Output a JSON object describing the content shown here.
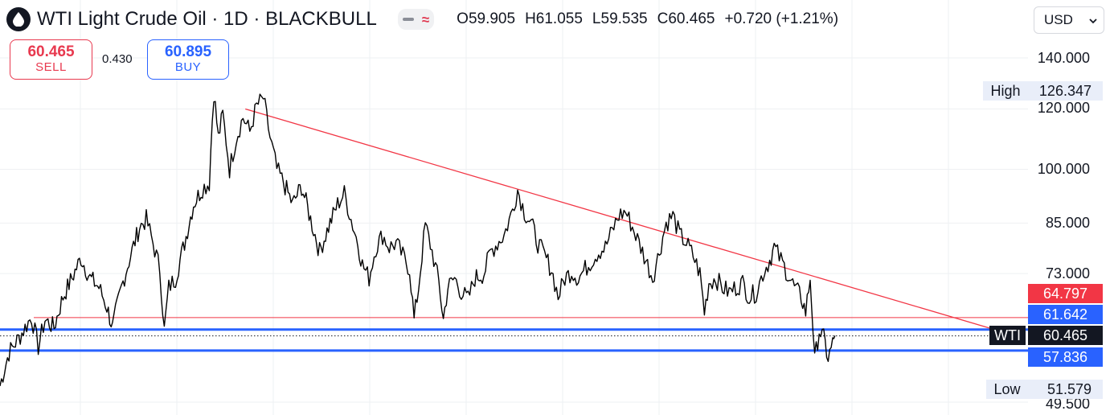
{
  "header": {
    "title": "WTI Light Crude Oil · 1D · BLACKBULL",
    "ohlc": {
      "o_label": "O",
      "o": "59.905",
      "h_label": "H",
      "h": "61.055",
      "l_label": "L",
      "l": "59.535",
      "c_label": "C",
      "c": "60.465",
      "change": "+0.720 (+1.21%)"
    },
    "currency": "USD"
  },
  "trade": {
    "sell_price": "60.465",
    "sell_label": "SELL",
    "spread": "0.430",
    "buy_price": "60.895",
    "buy_label": "BUY"
  },
  "colors": {
    "sell": "#e8394f",
    "buy": "#2962ff",
    "trendline": "#f23645",
    "support_blue": "#2962ff",
    "candles": "#000000"
  },
  "chart_data": {
    "type": "line",
    "symbol": "WTI",
    "interval": "1D",
    "scale": "log",
    "ylim": [
      49.5,
      150
    ],
    "y_ticks": [
      "140.000",
      "120.000",
      "100.000",
      "85.000",
      "73.000",
      "49.500"
    ],
    "last_price": "60.465",
    "last_price_label": "WTI",
    "high": {
      "label": "High",
      "value": "126.347"
    },
    "low": {
      "label": "Low",
      "value": "51.579"
    },
    "price_tags": [
      {
        "value": "64.797",
        "style": "sell"
      },
      {
        "value": "61.642",
        "style": "blue"
      },
      {
        "value": "57.836",
        "style": "blue"
      }
    ],
    "horizontal_levels": [
      {
        "price": 63.9,
        "color": "red",
        "width": 1
      },
      {
        "price": 61.642,
        "color": "blue",
        "width": 3
      },
      {
        "price": 60.465,
        "color": "black",
        "style": "dotted"
      },
      {
        "price": 57.836,
        "color": "blue",
        "width": 3
      }
    ],
    "trendline": {
      "from": {
        "t": 0.218,
        "price": 120.0
      },
      "to": {
        "t": 0.875,
        "price": 62.3
      }
    },
    "price_path": [
      [
        0.0,
        52.0
      ],
      [
        0.008,
        57.5
      ],
      [
        0.018,
        60.5
      ],
      [
        0.028,
        64.0
      ],
      [
        0.034,
        58.5
      ],
      [
        0.04,
        63.5
      ],
      [
        0.048,
        62.0
      ],
      [
        0.056,
        68.0
      ],
      [
        0.064,
        72.0
      ],
      [
        0.072,
        76.5
      ],
      [
        0.08,
        72.0
      ],
      [
        0.088,
        70.0
      ],
      [
        0.095,
        66.0
      ],
      [
        0.1,
        62.0
      ],
      [
        0.108,
        70.0
      ],
      [
        0.116,
        77.0
      ],
      [
        0.124,
        84.0
      ],
      [
        0.13,
        86.0
      ],
      [
        0.136,
        80.0
      ],
      [
        0.142,
        74.0
      ],
      [
        0.146,
        61.5
      ],
      [
        0.15,
        70.0
      ],
      [
        0.156,
        72.0
      ],
      [
        0.164,
        80.0
      ],
      [
        0.172,
        90.0
      ],
      [
        0.18,
        94.5
      ],
      [
        0.186,
        96.0
      ],
      [
        0.19,
        126.3
      ],
      [
        0.194,
        110.0
      ],
      [
        0.198,
        118.0
      ],
      [
        0.204,
        100.0
      ],
      [
        0.21,
        110.0
      ],
      [
        0.216,
        117.0
      ],
      [
        0.222,
        112.0
      ],
      [
        0.228,
        121.0
      ],
      [
        0.234,
        124.0
      ],
      [
        0.24,
        110.0
      ],
      [
        0.246,
        100.0
      ],
      [
        0.252,
        96.0
      ],
      [
        0.26,
        90.0
      ],
      [
        0.268,
        95.0
      ],
      [
        0.276,
        86.0
      ],
      [
        0.284,
        78.0
      ],
      [
        0.292,
        84.0
      ],
      [
        0.3,
        90.0
      ],
      [
        0.306,
        93.0
      ],
      [
        0.312,
        86.0
      ],
      [
        0.318,
        80.0
      ],
      [
        0.322,
        75.0
      ],
      [
        0.328,
        72.0
      ],
      [
        0.334,
        79.0
      ],
      [
        0.34,
        82.0
      ],
      [
        0.346,
        79.0
      ],
      [
        0.352,
        80.0
      ],
      [
        0.358,
        77.0
      ],
      [
        0.364,
        74.0
      ],
      [
        0.368,
        63.5
      ],
      [
        0.372,
        70.0
      ],
      [
        0.378,
        84.5
      ],
      [
        0.384,
        78.0
      ],
      [
        0.39,
        71.0
      ],
      [
        0.394,
        63.5
      ],
      [
        0.398,
        70.0
      ],
      [
        0.404,
        72.0
      ],
      [
        0.41,
        69.0
      ],
      [
        0.416,
        67.5
      ],
      [
        0.422,
        72.0
      ],
      [
        0.43,
        73.0
      ],
      [
        0.436,
        78.0
      ],
      [
        0.442,
        80.0
      ],
      [
        0.448,
        82.0
      ],
      [
        0.454,
        87.0
      ],
      [
        0.46,
        94.0
      ],
      [
        0.466,
        88.0
      ],
      [
        0.472,
        85.0
      ],
      [
        0.478,
        80.0
      ],
      [
        0.484,
        77.0
      ],
      [
        0.49,
        74.0
      ],
      [
        0.496,
        68.0
      ],
      [
        0.502,
        72.0
      ],
      [
        0.508,
        73.5
      ],
      [
        0.514,
        72.0
      ],
      [
        0.52,
        74.0
      ],
      [
        0.526,
        76.0
      ],
      [
        0.532,
        78.0
      ],
      [
        0.538,
        79.0
      ],
      [
        0.544,
        83.0
      ],
      [
        0.55,
        87.0
      ],
      [
        0.556,
        88.0
      ],
      [
        0.562,
        84.0
      ],
      [
        0.568,
        80.0
      ],
      [
        0.574,
        76.0
      ],
      [
        0.58,
        72.0
      ],
      [
        0.586,
        78.0
      ],
      [
        0.592,
        85.0
      ],
      [
        0.598,
        87.0
      ],
      [
        0.604,
        82.0
      ],
      [
        0.61,
        80.0
      ],
      [
        0.616,
        77.0
      ],
      [
        0.622,
        73.0
      ],
      [
        0.626,
        65.0
      ],
      [
        0.63,
        71.0
      ],
      [
        0.636,
        72.0
      ],
      [
        0.642,
        70.0
      ],
      [
        0.648,
        69.0
      ],
      [
        0.654,
        70.0
      ],
      [
        0.66,
        71.0
      ],
      [
        0.666,
        68.0
      ],
      [
        0.672,
        69.0
      ],
      [
        0.678,
        73.0
      ],
      [
        0.684,
        76.0
      ],
      [
        0.688,
        79.0
      ],
      [
        0.694,
        76.0
      ],
      [
        0.7,
        73.0
      ],
      [
        0.706,
        70.0
      ],
      [
        0.712,
        68.0
      ],
      [
        0.716,
        65.0
      ],
      [
        0.72,
        72.0
      ],
      [
        0.724,
        56.0
      ],
      [
        0.728,
        61.5
      ],
      [
        0.732,
        60.0
      ],
      [
        0.736,
        56.5
      ],
      [
        0.74,
        59.0
      ],
      [
        0.742,
        60.5
      ]
    ]
  }
}
